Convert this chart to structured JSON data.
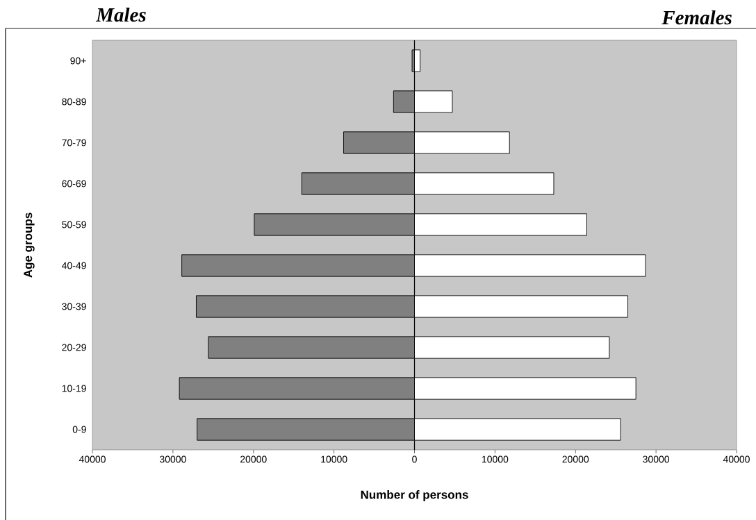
{
  "chart_data": {
    "type": "bar",
    "orientation": "horizontal",
    "stacked": true,
    "categories": [
      "90+",
      "80-89",
      "70-79",
      "60-69",
      "50-59",
      "40-49",
      "30-39",
      "20-29",
      "10-19",
      "0-9"
    ],
    "series": [
      {
        "color": "#808080",
        "values": [
          -300,
          -2600,
          -8800,
          -14000,
          -19900,
          -28900,
          -27100,
          -25600,
          -29200,
          -27000
        ]
      },
      {
        "color": "#ffffff",
        "values": [
          700,
          4700,
          11800,
          17300,
          21400,
          28700,
          26500,
          24200,
          27500,
          25600
        ]
      }
    ],
    "xlim": [
      -40000,
      40000
    ],
    "xticks": [
      {
        "value": -40000,
        "label": "40000"
      },
      {
        "value": -30000,
        "label": "30000"
      },
      {
        "value": -20000,
        "label": "20000"
      },
      {
        "value": -10000,
        "label": "10000"
      },
      0,
      10000,
      20000,
      30000,
      40000
    ],
    "xlabel": "Number of persons",
    "ylabel": "Age groups",
    "annotations": [
      "Males",
      "Females"
    ]
  }
}
